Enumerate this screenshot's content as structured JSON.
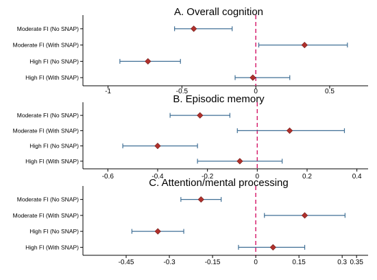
{
  "style": {
    "marker_color": "#b0302c",
    "marker_edge": "#6e1a17",
    "ci_color": "#3f6f95",
    "ref_line_color": "#d6206e",
    "background": "#ffffff"
  },
  "chart_data": [
    {
      "type": "scatter",
      "title": "A. Overall cognition",
      "categories": [
        "Moderate FI (No SNAP)",
        "Moderate FI (With SNAP)",
        "High FI (No SNAP)",
        "High FI (With SNAP)"
      ],
      "estimates": [
        -0.42,
        0.33,
        -0.73,
        -0.02
      ],
      "ci_low": [
        -0.55,
        0.02,
        -0.92,
        -0.14
      ],
      "ci_high": [
        -0.16,
        0.62,
        -0.51,
        0.23
      ],
      "reference_x": 0,
      "xlim": [
        -1.17,
        0.76
      ],
      "xticks": [
        -1,
        -0.5,
        0,
        0.5
      ],
      "xtick_labels": [
        "-1",
        "-0.5",
        "0",
        "0.5"
      ],
      "grid": false,
      "legend": "none"
    },
    {
      "type": "scatter",
      "title": "B. Episodic memory",
      "categories": [
        "Moderate FI (No SNAP)",
        "Moderate FI (With SNAP)",
        "High FI (No SNAP)",
        "High FI (With SNAP)"
      ],
      "estimates": [
        -0.23,
        0.13,
        -0.4,
        -0.07
      ],
      "ci_low": [
        -0.35,
        -0.08,
        -0.54,
        -0.24
      ],
      "ci_high": [
        -0.11,
        0.35,
        -0.24,
        0.1
      ],
      "reference_x": 0,
      "xlim": [
        -0.7,
        0.445
      ],
      "xticks": [
        -0.6,
        -0.4,
        -0.2,
        0,
        0.2,
        0.4
      ],
      "xtick_labels": [
        "-0.6",
        "-0.4",
        "-0.2",
        "0",
        "0.2",
        "0.4"
      ],
      "grid": false,
      "legend": "none"
    },
    {
      "type": "scatter",
      "title": "C. Attention/mental processing",
      "categories": [
        "Moderate FI (No SNAP)",
        "Moderate FI (With SNAP)",
        "High FI (No SNAP)",
        "High FI (With SNAP)"
      ],
      "estimates": [
        -0.19,
        0.17,
        -0.34,
        0.06
      ],
      "ci_low": [
        -0.26,
        0.03,
        -0.43,
        -0.06
      ],
      "ci_high": [
        -0.12,
        0.31,
        -0.25,
        0.17
      ],
      "reference_x": 0,
      "xlim": [
        -0.6,
        0.39
      ],
      "xticks": [
        -0.45,
        -0.3,
        -0.15,
        0,
        0.15,
        0.3,
        0.35
      ],
      "xtick_labels": [
        "-0.45",
        "-0.3",
        "-0.15",
        "0",
        "0.15",
        "0.3",
        "0.35"
      ],
      "grid": false,
      "legend": "none"
    }
  ]
}
